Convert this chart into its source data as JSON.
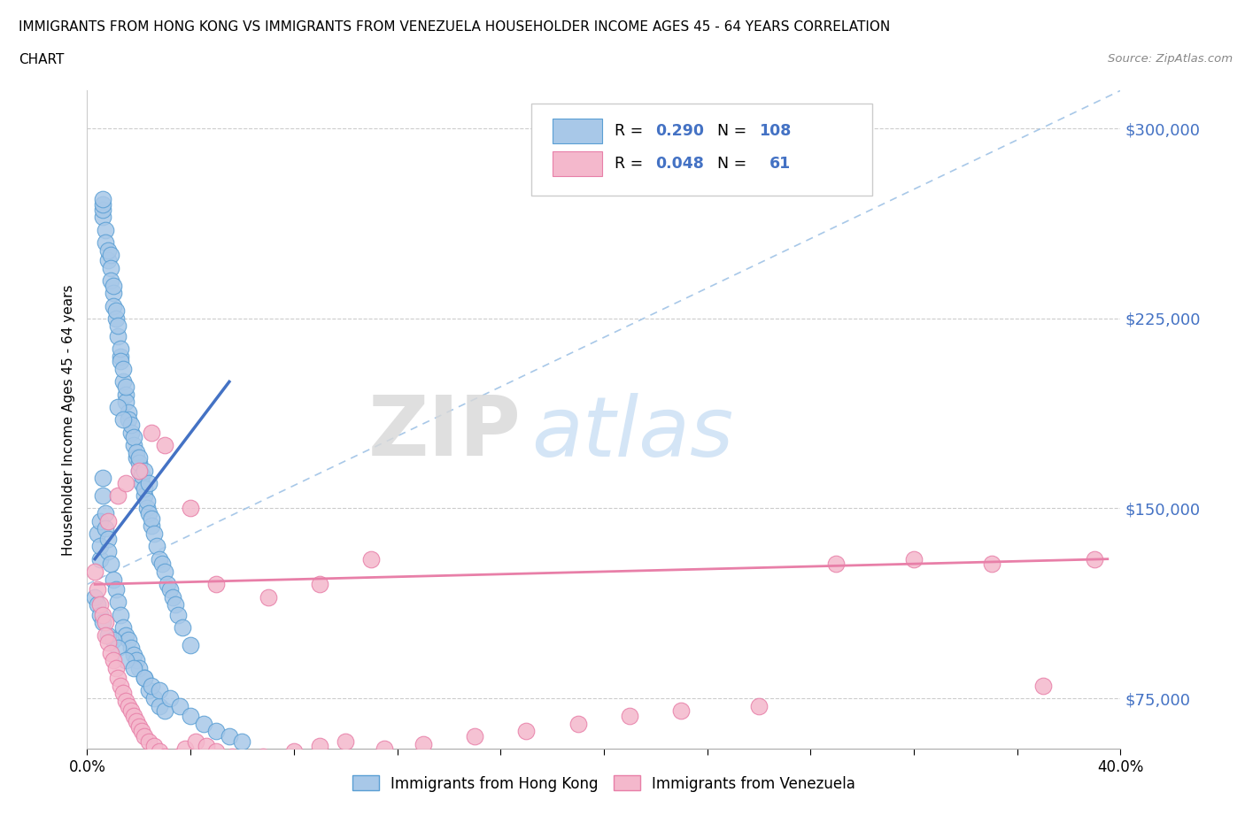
{
  "title_line1": "IMMIGRANTS FROM HONG KONG VS IMMIGRANTS FROM VENEZUELA HOUSEHOLDER INCOME AGES 45 - 64 YEARS CORRELATION",
  "title_line2": "CHART",
  "source_text": "Source: ZipAtlas.com",
  "ylabel": "Householder Income Ages 45 - 64 years",
  "xmin": 0.0,
  "xmax": 0.4,
  "ymin": 55000,
  "ymax": 315000,
  "yticks": [
    75000,
    150000,
    225000,
    300000
  ],
  "ytick_labels": [
    "$75,000",
    "$150,000",
    "$225,000",
    "$300,000"
  ],
  "hk_color": "#a8c8e8",
  "hk_edge_color": "#5a9fd4",
  "ven_color": "#f4b8cc",
  "ven_edge_color": "#e87fa8",
  "hk_line_color": "#4472c4",
  "ven_line_color": "#e87fa8",
  "diag_color": "#a8c8e8",
  "watermark_zip": "ZIP",
  "watermark_atlas": "atlas",
  "hk_scatter_x": [
    0.004,
    0.005,
    0.005,
    0.006,
    0.006,
    0.006,
    0.006,
    0.007,
    0.007,
    0.008,
    0.008,
    0.009,
    0.009,
    0.009,
    0.01,
    0.01,
    0.01,
    0.011,
    0.011,
    0.012,
    0.012,
    0.013,
    0.013,
    0.013,
    0.014,
    0.014,
    0.015,
    0.015,
    0.015,
    0.016,
    0.016,
    0.017,
    0.017,
    0.018,
    0.018,
    0.019,
    0.019,
    0.02,
    0.02,
    0.021,
    0.021,
    0.022,
    0.022,
    0.023,
    0.023,
    0.024,
    0.025,
    0.025,
    0.026,
    0.027,
    0.028,
    0.029,
    0.03,
    0.031,
    0.032,
    0.033,
    0.034,
    0.035,
    0.037,
    0.04,
    0.005,
    0.006,
    0.006,
    0.007,
    0.007,
    0.008,
    0.008,
    0.009,
    0.01,
    0.011,
    0.012,
    0.013,
    0.014,
    0.015,
    0.016,
    0.017,
    0.018,
    0.019,
    0.02,
    0.022,
    0.024,
    0.026,
    0.028,
    0.03,
    0.003,
    0.004,
    0.005,
    0.006,
    0.008,
    0.01,
    0.012,
    0.015,
    0.018,
    0.022,
    0.025,
    0.028,
    0.032,
    0.036,
    0.04,
    0.045,
    0.05,
    0.055,
    0.06,
    0.012,
    0.014,
    0.02,
    0.022,
    0.024
  ],
  "hk_scatter_y": [
    140000,
    130000,
    135000,
    265000,
    268000,
    270000,
    272000,
    260000,
    255000,
    248000,
    252000,
    250000,
    245000,
    240000,
    235000,
    238000,
    230000,
    225000,
    228000,
    218000,
    222000,
    210000,
    213000,
    208000,
    200000,
    205000,
    195000,
    192000,
    198000,
    188000,
    185000,
    180000,
    183000,
    175000,
    178000,
    170000,
    172000,
    165000,
    168000,
    160000,
    163000,
    155000,
    158000,
    150000,
    153000,
    148000,
    143000,
    146000,
    140000,
    135000,
    130000,
    128000,
    125000,
    120000,
    118000,
    115000,
    112000,
    108000,
    103000,
    96000,
    145000,
    155000,
    162000,
    148000,
    142000,
    138000,
    133000,
    128000,
    122000,
    118000,
    113000,
    108000,
    103000,
    100000,
    98000,
    95000,
    92000,
    90000,
    87000,
    83000,
    78000,
    75000,
    72000,
    70000,
    115000,
    112000,
    108000,
    105000,
    100000,
    98000,
    95000,
    90000,
    87000,
    83000,
    80000,
    78000,
    75000,
    72000,
    68000,
    65000,
    62000,
    60000,
    58000,
    190000,
    185000,
    170000,
    165000,
    160000
  ],
  "ven_scatter_x": [
    0.003,
    0.004,
    0.005,
    0.006,
    0.007,
    0.007,
    0.008,
    0.009,
    0.01,
    0.011,
    0.012,
    0.013,
    0.014,
    0.015,
    0.016,
    0.017,
    0.018,
    0.019,
    0.02,
    0.021,
    0.022,
    0.024,
    0.026,
    0.028,
    0.03,
    0.032,
    0.035,
    0.038,
    0.042,
    0.046,
    0.05,
    0.056,
    0.062,
    0.068,
    0.08,
    0.09,
    0.1,
    0.115,
    0.13,
    0.15,
    0.17,
    0.19,
    0.21,
    0.23,
    0.26,
    0.29,
    0.32,
    0.35,
    0.37,
    0.39,
    0.008,
    0.012,
    0.015,
    0.02,
    0.025,
    0.03,
    0.04,
    0.05,
    0.07,
    0.09,
    0.11
  ],
  "ven_scatter_y": [
    125000,
    118000,
    112000,
    108000,
    105000,
    100000,
    97000,
    93000,
    90000,
    87000,
    83000,
    80000,
    77000,
    74000,
    72000,
    70000,
    68000,
    66000,
    64000,
    62000,
    60000,
    58000,
    56000,
    54000,
    52000,
    50000,
    52000,
    55000,
    58000,
    56000,
    54000,
    52000,
    50000,
    52000,
    54000,
    56000,
    58000,
    55000,
    57000,
    60000,
    62000,
    65000,
    68000,
    70000,
    72000,
    128000,
    130000,
    128000,
    80000,
    130000,
    145000,
    155000,
    160000,
    165000,
    180000,
    175000,
    150000,
    120000,
    115000,
    120000,
    130000
  ]
}
